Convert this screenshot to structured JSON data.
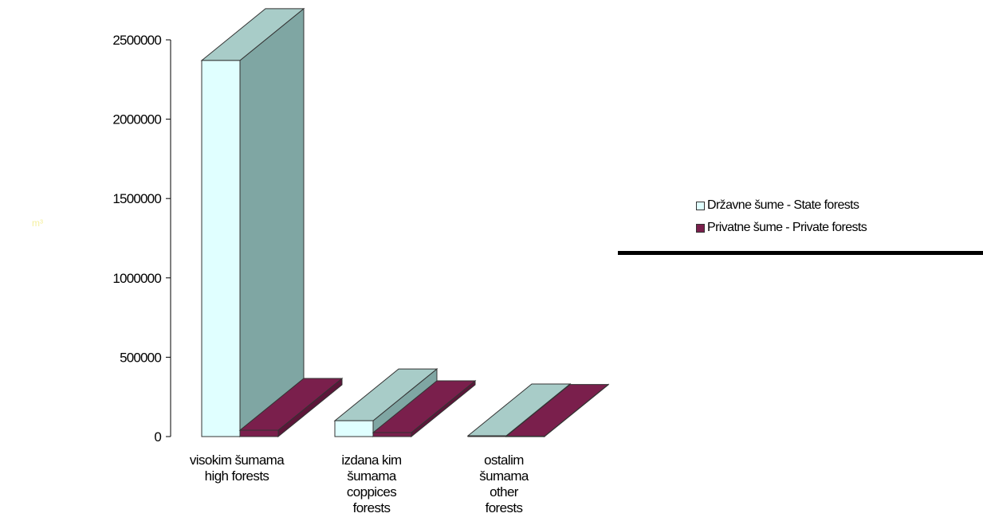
{
  "chart_data": {
    "type": "bar",
    "three_d": true,
    "unit_label": "m³",
    "categories": [
      [
        "visokim šumama",
        "high forests"
      ],
      [
        "izdana kim",
        "šumama",
        "coppices",
        "forests"
      ],
      [
        "ostalim",
        "šumama",
        "other",
        "forests"
      ]
    ],
    "series": [
      {
        "name": "Državne šume - State forests",
        "values": [
          2370000,
          100000,
          5000
        ]
      },
      {
        "name": "Privatne šume - Private forests",
        "values": [
          40000,
          25000,
          2000
        ]
      }
    ],
    "yticks": [
      "2500000",
      "2000000",
      "1500000",
      "1000000",
      "500000",
      "0"
    ],
    "ylim": [
      0,
      2500000
    ],
    "legend_position": "right",
    "grid": false
  },
  "colors": {
    "state_front": "#E0FFFF",
    "state_top": "#A8CCC8",
    "state_side": "#7FA6A3",
    "private_front": "#7A1F4C",
    "private_top": "#7A1F4C",
    "private_side": "#5C1639",
    "unit_label": "#F5F0A0",
    "outline": "#333333"
  }
}
